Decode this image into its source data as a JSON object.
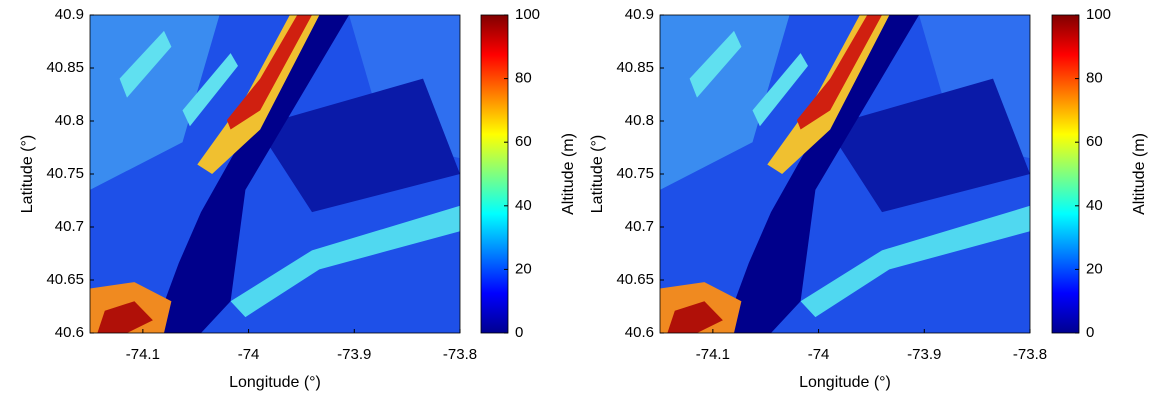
{
  "chart_data": [
    {
      "type": "heatmap",
      "colormap": "jet",
      "xlabel": "Longitude (°)",
      "ylabel": "Latitude (°)",
      "colorbar_label": "Altitude (m)",
      "xlim": [
        -74.15,
        -73.8
      ],
      "xticks": [
        -74.1,
        -74,
        -73.9,
        -73.8
      ],
      "ylim": [
        40.6,
        40.9
      ],
      "yticks": [
        40.6,
        40.65,
        40.7,
        40.75,
        40.8,
        40.85,
        40.9
      ],
      "clim": [
        0,
        100
      ],
      "cticks": [
        0,
        20,
        40,
        60,
        80,
        100
      ]
    },
    {
      "type": "heatmap",
      "colormap": "jet",
      "xlabel": "Longitude (°)",
      "ylabel": "Latitude (°)",
      "colorbar_label": "Altitude (m)",
      "xlim": [
        -74.15,
        -73.8
      ],
      "xticks": [
        -74.1,
        -74,
        -73.9,
        -73.8
      ],
      "ylim": [
        40.6,
        40.9
      ],
      "yticks": [
        40.6,
        40.65,
        40.7,
        40.75,
        40.8,
        40.85,
        40.9
      ],
      "clim": [
        0,
        100
      ],
      "cticks": [
        0,
        20,
        40,
        60,
        80,
        100
      ]
    }
  ]
}
